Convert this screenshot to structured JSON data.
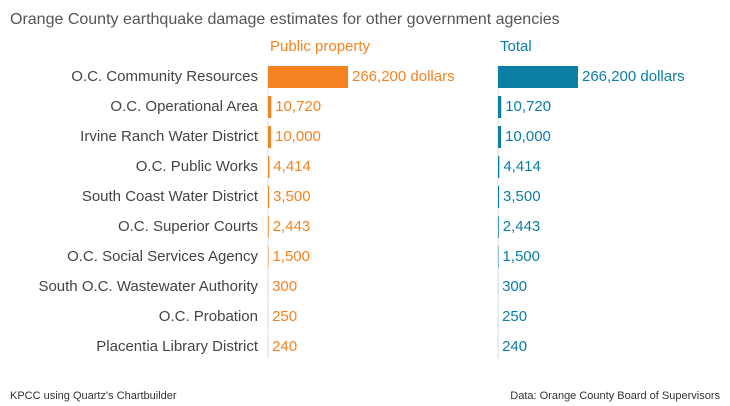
{
  "chart_data": {
    "type": "bar",
    "orientation": "horizontal",
    "title": "Orange County earthquake damage estimates for other government agencies",
    "categories": [
      "O.C. Community Resources",
      "O.C. Operational Area",
      "Irvine Ranch Water District",
      "O.C. Public Works",
      "South Coast Water District",
      "O.C. Superior Courts",
      "O.C. Social Services Agency",
      "South O.C. Wastewater Authority",
      "O.C. Probation",
      "Placentia Library District"
    ],
    "series": [
      {
        "name": "Public property",
        "color": "#f58220",
        "values": [
          266200,
          10720,
          10000,
          4414,
          3500,
          2443,
          1500,
          300,
          250,
          240
        ],
        "value_labels": [
          "266,200 dollars",
          "10,720",
          "10,000",
          "4,414",
          "3,500",
          "2,443",
          "1,500",
          "300",
          "250",
          "240"
        ]
      },
      {
        "name": "Total",
        "color": "#0a7ea4",
        "values": [
          266200,
          10720,
          10000,
          4414,
          3500,
          2443,
          1500,
          300,
          250,
          240
        ],
        "value_labels": [
          "266,200 dollars",
          "10,720",
          "10,000",
          "4,414",
          "3,500",
          "2,443",
          "1,500",
          "300",
          "250",
          "240"
        ]
      }
    ],
    "credit": "KPCC using Quartz's Chartbuilder",
    "source": "Data: Orange County Board of Supervisors"
  }
}
